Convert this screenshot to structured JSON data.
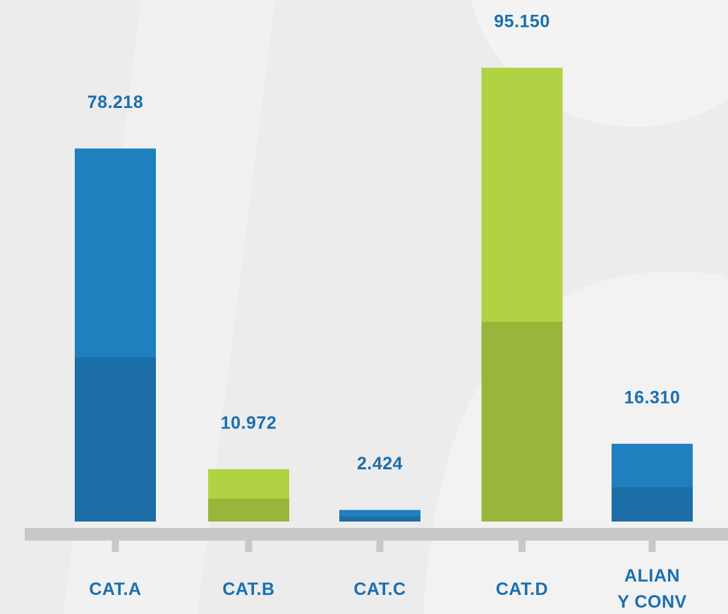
{
  "chart_data": {
    "type": "bar",
    "categories": [
      "CAT.A",
      "CAT.B",
      "CAT.C",
      "CAT.D",
      "ALIAN\nY CONV"
    ],
    "values": [
      78218,
      10972,
      2424,
      95150,
      16310
    ],
    "value_labels": [
      "78.218",
      "10.972",
      "2.424",
      "95.150",
      "16.310"
    ],
    "colors": [
      "#1f7fbf",
      "#b0d243",
      "#1f7fbf",
      "#b0d243",
      "#1f7fbf"
    ]
  }
}
